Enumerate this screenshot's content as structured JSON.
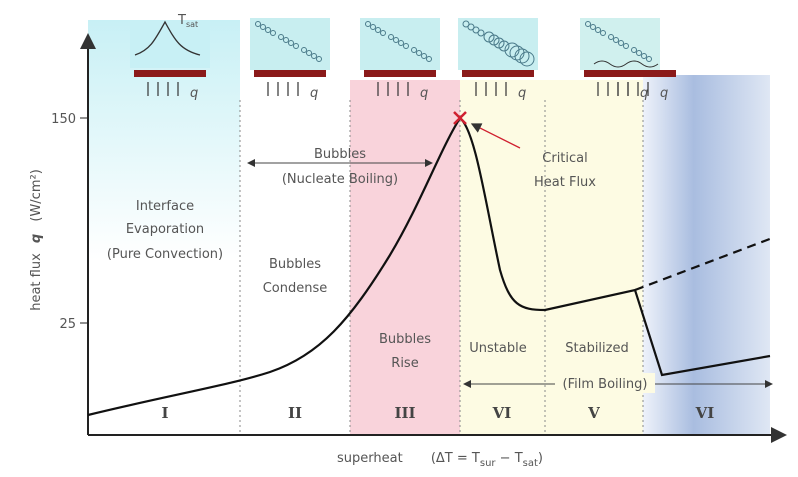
{
  "y_axis": {
    "label": "heat flux",
    "symbol": "q",
    "unit": "(W/cm²)",
    "ticks": [
      "150",
      "25"
    ]
  },
  "x_axis": {
    "label": "superheat",
    "formula_start": "(ΔT = T",
    "sub1": "sur",
    "formula_mid": " − T",
    "sub2": "sat",
    "formula_end": ")"
  },
  "regions": [
    "I",
    "II",
    "III",
    "VI",
    "V",
    "VI"
  ],
  "annotations": {
    "interface": [
      "Interface",
      "Evaporation",
      "(Pure Convection)"
    ],
    "condense": [
      "Bubbles",
      "Condense"
    ],
    "nucleate": [
      "Bubbles",
      "(Nucleate Boiling)"
    ],
    "rise": [
      "Bubbles",
      "Rise"
    ],
    "chf": [
      "Critical",
      "Heat Flux"
    ],
    "unstable": "Unstable",
    "stabilized": "Stabilized",
    "film": "(Film Boiling)"
  },
  "icons": {
    "t_label": "T",
    "t_sub": "sat",
    "q_labels": [
      "q",
      "q",
      "q",
      "q",
      "q",
      "q"
    ]
  }
}
